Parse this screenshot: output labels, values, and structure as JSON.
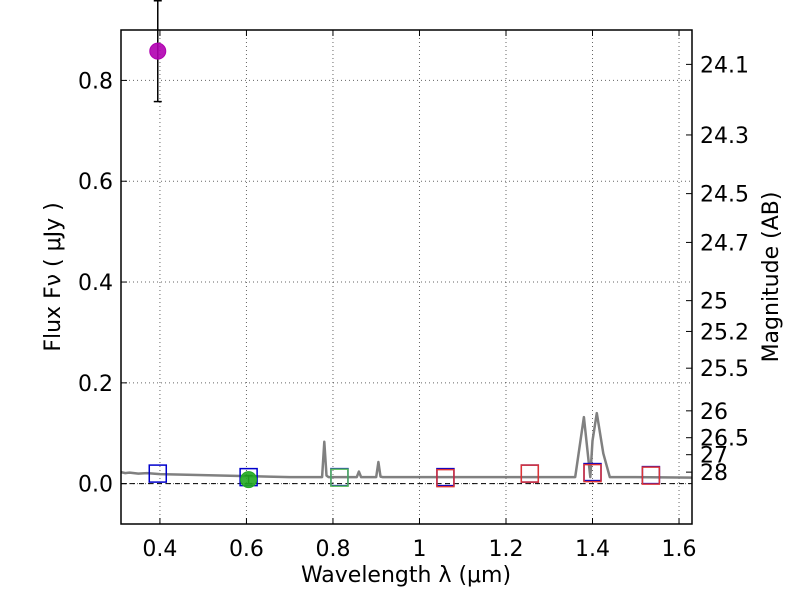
{
  "chart_data": {
    "type": "scatter",
    "title": "",
    "xlabel": "Wavelength  λ (μm)",
    "ylabel": "Flux  Fν  ( μJy )",
    "y2label": "Magnitude (AB)",
    "xlim": [
      0.31,
      1.63
    ],
    "ylim": [
      -0.08,
      0.9
    ],
    "xticks": [
      0.4,
      0.6,
      0.8,
      1.0,
      1.2,
      1.4,
      1.6
    ],
    "xtick_labels": [
      "0.4",
      "0.6",
      "0.8",
      "1",
      "1.2",
      "1.4",
      "1.6"
    ],
    "yticks": [
      0.0,
      0.2,
      0.4,
      0.6,
      0.8
    ],
    "ytick_labels": [
      "0.0",
      "0.2",
      "0.4",
      "0.6",
      "0.8"
    ],
    "mag_ticks": [
      {
        "label": "24.1",
        "flux": 0.8318
      },
      {
        "label": "24.3",
        "flux": 0.6918
      },
      {
        "label": "24.5",
        "flux": 0.5754
      },
      {
        "label": "24.7",
        "flux": 0.4786
      },
      {
        "label": "25",
        "flux": 0.3631
      },
      {
        "label": "25.2",
        "flux": 0.302
      },
      {
        "label": "25.5",
        "flux": 0.2291
      },
      {
        "label": "26",
        "flux": 0.1445
      },
      {
        "label": "26.5",
        "flux": 0.0912
      },
      {
        "label": "27",
        "flux": 0.0575
      },
      {
        "label": "28",
        "flux": 0.0229
      }
    ],
    "grid": true,
    "series": [
      {
        "name": "model-sed",
        "style": "line",
        "color": "#808080",
        "x": [
          0.31,
          0.32,
          0.33,
          0.35,
          0.37,
          0.4,
          0.45,
          0.5,
          0.55,
          0.6,
          0.65,
          0.7,
          0.75,
          0.775,
          0.78,
          0.785,
          0.79,
          0.82,
          0.855,
          0.86,
          0.865,
          0.9,
          0.905,
          0.91,
          0.915,
          1.0,
          1.1,
          1.2,
          1.3,
          1.36,
          1.38,
          1.395,
          1.4,
          1.41,
          1.425,
          1.44,
          1.5,
          1.63
        ],
        "y": [
          0.023,
          0.021,
          0.022,
          0.02,
          0.021,
          0.019,
          0.018,
          0.017,
          0.016,
          0.015,
          0.014,
          0.013,
          0.013,
          0.013,
          0.083,
          0.016,
          0.013,
          0.013,
          0.013,
          0.024,
          0.013,
          0.013,
          0.043,
          0.014,
          0.013,
          0.013,
          0.013,
          0.013,
          0.013,
          0.013,
          0.132,
          0.013,
          0.085,
          0.14,
          0.06,
          0.013,
          0.013,
          0.012
        ]
      },
      {
        "name": "blue-squares",
        "style": "square-open",
        "color": "#0000cc",
        "x": [
          0.395,
          0.605,
          0.815,
          1.06,
          1.255,
          1.4,
          1.535
        ],
        "y": [
          0.02,
          0.013,
          0.013,
          0.013,
          0.02,
          0.023,
          0.017
        ]
      },
      {
        "name": "red-squares",
        "style": "square-open",
        "color": "#dd3333",
        "x": [
          1.06,
          1.255,
          1.4,
          1.535
        ],
        "y": [
          0.011,
          0.02,
          0.021,
          0.016
        ]
      },
      {
        "name": "green-squares",
        "style": "square-open",
        "color": "#55bb55",
        "x": [
          0.815
        ],
        "y": [
          0.012
        ]
      },
      {
        "name": "magenta-detection",
        "style": "circle-filled",
        "color": "#b000b0",
        "x": [
          0.395
        ],
        "y": [
          0.858
        ],
        "yerr_low": [
          0.1
        ],
        "yerr_high": [
          0.1
        ]
      },
      {
        "name": "green-detection",
        "style": "circle-filled",
        "color": "#22aa22",
        "x": [
          0.605
        ],
        "y": [
          0.008
        ],
        "yerr_low": [
          0.008
        ],
        "yerr_high": [
          0.008
        ]
      }
    ],
    "zero_line": {
      "y": 0.0,
      "style": "dashed",
      "color": "#000000"
    }
  }
}
